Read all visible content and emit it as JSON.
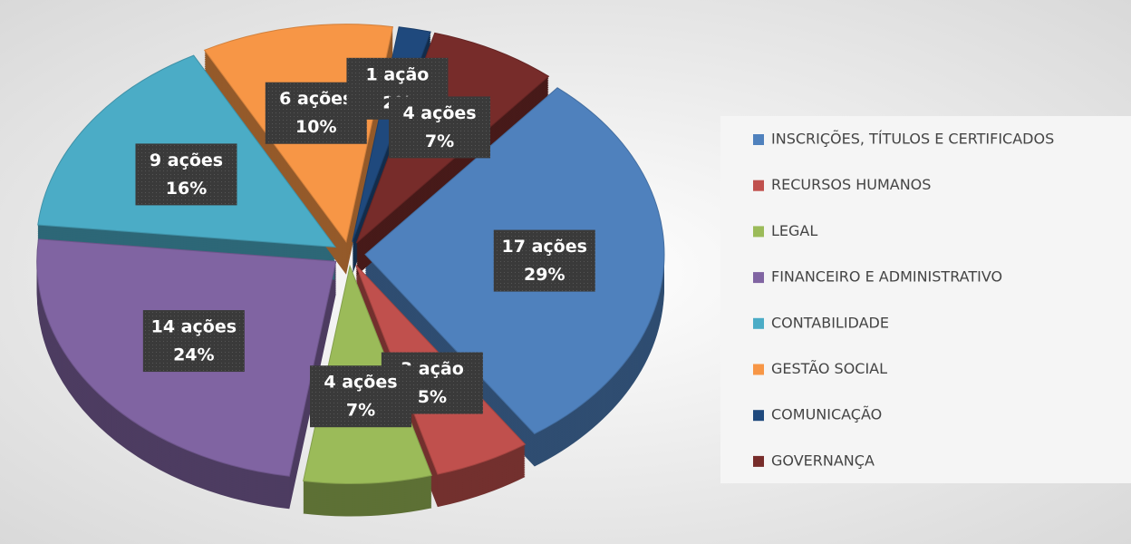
{
  "chart_data": {
    "type": "pie",
    "categories": [
      "INSCRIÇÕES, TÍTULOS E CERTIFICADOS",
      "RECURSOS HUMANOS",
      "LEGAL",
      "FINANCEIRO E ADMINISTRATIVO",
      "CONTABILIDADE",
      "GESTÃO SOCIAL",
      "COMUNICAÇÃO",
      "GOVERNANÇA"
    ],
    "values": [
      17,
      3,
      4,
      14,
      9,
      6,
      1,
      4
    ],
    "value_labels": [
      "17 ações",
      "3 ação",
      "4 ações",
      "14 ações",
      "9 ações",
      "6 ações",
      "1 ação",
      "4 ações"
    ],
    "percentages": [
      29,
      5,
      7,
      24,
      16,
      10,
      2,
      7
    ],
    "percentage_labels": [
      "29%",
      "5%",
      "7%",
      "24%",
      "16%",
      "10%",
      "2%",
      "7%"
    ],
    "colors": [
      "#4f81bd",
      "#c0504d",
      "#9bbb59",
      "#8064a2",
      "#4bacc6",
      "#f79646",
      "#1f497d",
      "#772c2a"
    ],
    "legend": "right"
  }
}
